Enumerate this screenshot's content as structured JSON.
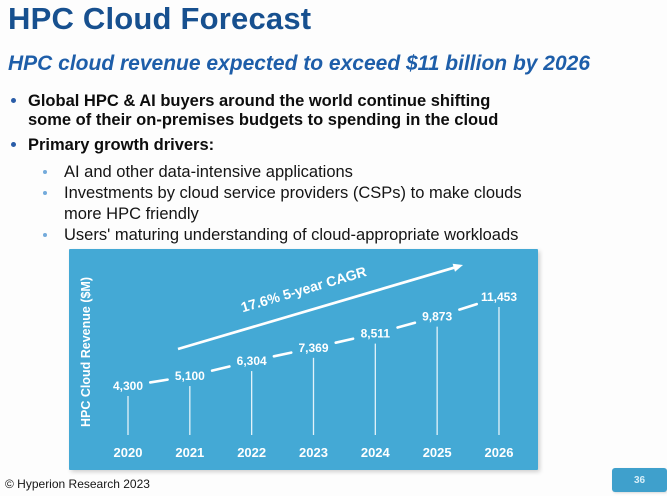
{
  "slide": {
    "title": "HPC Cloud Forecast",
    "subtitle": "HPC cloud revenue expected to exceed $11 billion by 2026",
    "bullets": [
      {
        "level": 1,
        "lines": [
          "Global HPC & AI buyers around the world continue shifting",
          "some of their on-premises budgets to spending in the cloud"
        ]
      },
      {
        "level": 1,
        "lines": [
          "Primary growth drivers:"
        ]
      },
      {
        "level": 2,
        "lines": [
          "AI and other data-intensive applications"
        ]
      },
      {
        "level": 2,
        "lines": [
          "Investments by cloud service providers (CSPs) to make clouds",
          "more HPC friendly"
        ]
      },
      {
        "level": 2,
        "lines": [
          "Users' maturing understanding of cloud-appropriate workloads"
        ]
      }
    ],
    "footer": "© Hyperion Research 2023",
    "page_number": "36"
  },
  "colors": {
    "title_blue": "#17508F",
    "subtitle_blue": "#1E5EA9",
    "bullet_l1_dot": "#2A5DA8",
    "bullet_l2_dot": "#74ABDB",
    "chart_background": "#44A9D5",
    "chart_text": "#FFFFFF",
    "page_badge": "#3FA0CC"
  },
  "chart_data": {
    "type": "line",
    "title": "",
    "ylabel": "HPC Cloud Revenue ($M)",
    "xlabel": "",
    "categories": [
      "2020",
      "2021",
      "2022",
      "2023",
      "2024",
      "2025",
      "2026"
    ],
    "values": [
      4300,
      5100,
      6304,
      7369,
      8511,
      9873,
      11453
    ],
    "value_labels": [
      "4,300",
      "5,100",
      "6,304",
      "7,369",
      "8,511",
      "9,873",
      "11,453"
    ],
    "annotation": "17.6% 5-year CAGR",
    "annotation_style": "white arrow rising left-to-right above the series",
    "ylim": [
      4300,
      11453
    ],
    "grid": false,
    "legend": "none",
    "series_style": "white dashed trend with data labels on the line and drop lines to x-axis"
  }
}
